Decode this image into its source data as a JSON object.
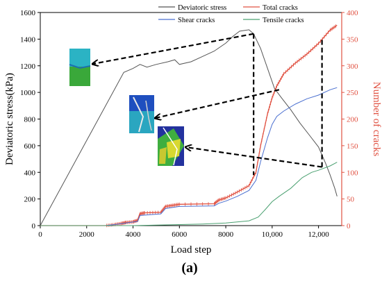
{
  "chart_data": {
    "type": "line",
    "xlabel": "Load step",
    "ylabel_left": "Deviatoric stress(kPa)",
    "ylabel_right": "Number of cracks",
    "panel_label": "(a)",
    "xlim": [
      0,
      13000
    ],
    "ylim_left": [
      0,
      1600
    ],
    "ylim_right": [
      0,
      400
    ],
    "x_ticks": [
      0,
      2000,
      4000,
      6000,
      8000,
      10000,
      12000
    ],
    "x_tick_labels": [
      "0",
      "2000",
      "4000",
      "6000",
      "8000",
      "10,000",
      "12,000"
    ],
    "y_left_ticks": [
      0,
      200,
      400,
      600,
      800,
      1000,
      1200,
      1400,
      1600
    ],
    "y_left_tick_labels": [
      "0",
      "200",
      "400",
      "600",
      "800",
      "1000",
      "1200",
      "1400",
      "1600"
    ],
    "y_right_ticks": [
      0,
      50,
      100,
      150,
      200,
      250,
      300,
      350,
      400
    ],
    "y_right_tick_labels": [
      "0",
      "50",
      "100",
      "150",
      "200",
      "250",
      "300",
      "350",
      "400"
    ],
    "legend_position": "top",
    "series": [
      {
        "name": "Deviatoric stress",
        "axis": "left",
        "color": "#555555",
        "points": [
          [
            0,
            0
          ],
          [
            3600,
            1150
          ],
          [
            4000,
            1180
          ],
          [
            4300,
            1210
          ],
          [
            4600,
            1190
          ],
          [
            5000,
            1210
          ],
          [
            5500,
            1230
          ],
          [
            5800,
            1245
          ],
          [
            6000,
            1210
          ],
          [
            6500,
            1230
          ],
          [
            7000,
            1270
          ],
          [
            7500,
            1310
          ],
          [
            8000,
            1370
          ],
          [
            8300,
            1420
          ],
          [
            8600,
            1460
          ],
          [
            9000,
            1470
          ],
          [
            9200,
            1440
          ],
          [
            9500,
            1330
          ],
          [
            9800,
            1180
          ],
          [
            10100,
            1030
          ],
          [
            10400,
            960
          ],
          [
            10800,
            870
          ],
          [
            11200,
            770
          ],
          [
            11600,
            680
          ],
          [
            12000,
            590
          ],
          [
            12300,
            470
          ],
          [
            12500,
            380
          ],
          [
            12700,
            280
          ],
          [
            12800,
            220
          ]
        ]
      },
      {
        "name": "Total cracks",
        "axis": "right",
        "color": "#e05040",
        "points": [
          [
            0,
            0
          ],
          [
            2800,
            0
          ],
          [
            3200,
            2
          ],
          [
            3500,
            4
          ],
          [
            3700,
            6
          ],
          [
            4000,
            7
          ],
          [
            4200,
            10
          ],
          [
            4300,
            22
          ],
          [
            4500,
            24
          ],
          [
            5200,
            25
          ],
          [
            5400,
            36
          ],
          [
            5700,
            38
          ],
          [
            6000,
            40
          ],
          [
            7500,
            41
          ],
          [
            7700,
            48
          ],
          [
            8000,
            52
          ],
          [
            8500,
            63
          ],
          [
            9000,
            75
          ],
          [
            9300,
            100
          ],
          [
            9500,
            150
          ],
          [
            9800,
            210
          ],
          [
            10000,
            240
          ],
          [
            10200,
            262
          ],
          [
            10500,
            285
          ],
          [
            11000,
            305
          ],
          [
            11500,
            322
          ],
          [
            12000,
            342
          ],
          [
            12500,
            367
          ],
          [
            12800,
            376
          ]
        ]
      },
      {
        "name": "Shear cracks",
        "axis": "right",
        "color": "#4a6fd0",
        "points": [
          [
            0,
            0
          ],
          [
            2800,
            0
          ],
          [
            3200,
            2
          ],
          [
            3700,
            5
          ],
          [
            4200,
            8
          ],
          [
            4300,
            19
          ],
          [
            5200,
            22
          ],
          [
            5400,
            32
          ],
          [
            6000,
            36
          ],
          [
            7500,
            37
          ],
          [
            7700,
            42
          ],
          [
            8000,
            46
          ],
          [
            8500,
            55
          ],
          [
            9000,
            66
          ],
          [
            9300,
            85
          ],
          [
            9500,
            120
          ],
          [
            9800,
            165
          ],
          [
            10000,
            190
          ],
          [
            10200,
            205
          ],
          [
            10500,
            215
          ],
          [
            11000,
            228
          ],
          [
            11500,
            238
          ],
          [
            12000,
            245
          ],
          [
            12500,
            255
          ],
          [
            12800,
            259
          ]
        ]
      },
      {
        "name": "Tensile cracks",
        "axis": "right",
        "color": "#4aa070",
        "points": [
          [
            0,
            0
          ],
          [
            4000,
            0
          ],
          [
            5000,
            1
          ],
          [
            6000,
            2
          ],
          [
            7000,
            3
          ],
          [
            8000,
            5
          ],
          [
            9000,
            9
          ],
          [
            9400,
            16
          ],
          [
            9700,
            30
          ],
          [
            10000,
            45
          ],
          [
            10300,
            55
          ],
          [
            10800,
            70
          ],
          [
            11300,
            90
          ],
          [
            11700,
            100
          ],
          [
            12000,
            104
          ],
          [
            12500,
            112
          ],
          [
            12800,
            119
          ]
        ]
      }
    ]
  }
}
